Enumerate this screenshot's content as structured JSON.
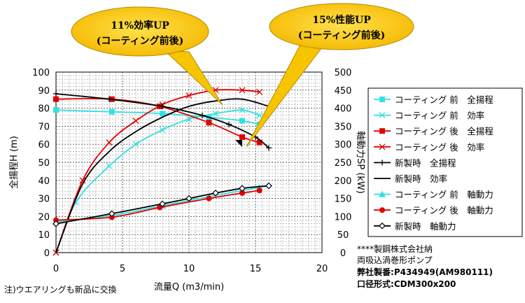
{
  "chart_data": {
    "type": "line",
    "title": "",
    "xlabel": "流量Q (m3/min)",
    "ylabel_left": "全揚程H (m)",
    "ylabel_right": "軸動力SP (kW)",
    "xlim": [
      0,
      20
    ],
    "ylim_left": [
      0,
      100
    ],
    "ylim_right": [
      0,
      500
    ],
    "x_ticks": [
      "0",
      "5",
      "10",
      "15",
      "20"
    ],
    "y_left_ticks": [
      "0",
      "10",
      "20",
      "30",
      "40",
      "50",
      "60",
      "70",
      "80",
      "90",
      "100"
    ],
    "y_right_ticks": [
      "0",
      "50",
      "100",
      "150",
      "200",
      "250",
      "300",
      "350",
      "400",
      "450",
      "500"
    ],
    "grid": true,
    "legend_position": "right",
    "series": [
      {
        "name": "コーティング 前　全揚程",
        "axis": "left",
        "color": "#33e0e0",
        "marker": "square",
        "x": [
          0,
          4.2,
          8,
          11.5,
          14,
          15.3
        ],
        "y": [
          79,
          78,
          77,
          75,
          73,
          71
        ]
      },
      {
        "name": "コーティング 前　効率",
        "axis": "left",
        "color": "#33e0e0",
        "marker": "x",
        "x": [
          0,
          1.5,
          4,
          6,
          8,
          10,
          12,
          14,
          15.3
        ],
        "y": [
          0,
          28,
          48,
          60,
          68,
          74,
          77,
          79,
          76
        ]
      },
      {
        "name": "コーティング 後　全揚程",
        "axis": "left",
        "color": "#e00000",
        "marker": "square",
        "x": [
          0,
          4.2,
          7.8,
          11.5,
          14,
          15.3
        ],
        "y": [
          85,
          85,
          81,
          72,
          64,
          61
        ]
      },
      {
        "name": "コーティング 後　効率",
        "axis": "left",
        "color": "#e00000",
        "marker": "x",
        "x": [
          0,
          2,
          4,
          6,
          8,
          10,
          12,
          14,
          15.3
        ],
        "y": [
          0,
          40,
          61,
          73,
          82,
          87,
          90,
          90,
          89
        ]
      },
      {
        "name": "新製時　全揚程",
        "axis": "left",
        "color": "#000000",
        "marker": "plus",
        "x": [
          0,
          4,
          8,
          11,
          13,
          15,
          16
        ],
        "y": [
          88,
          85,
          81,
          76,
          71,
          64,
          58
        ]
      },
      {
        "name": "新製時　効率",
        "axis": "left",
        "color": "#000000",
        "marker": "none",
        "x": [
          0,
          2,
          4,
          6,
          8,
          10,
          12,
          14,
          16
        ],
        "y": [
          0,
          38,
          56,
          67,
          75,
          81,
          84,
          85,
          81
        ]
      },
      {
        "name": "コーティング 前　軸動力",
        "axis": "right",
        "color": "#33e0e0",
        "marker": "triangle",
        "x": [
          0,
          4.2,
          8,
          11.5,
          14,
          15.3
        ],
        "y": [
          85,
          103,
          130,
          155,
          172,
          180
        ]
      },
      {
        "name": "コーティング 後　軸動力",
        "axis": "right",
        "color": "#e00000",
        "marker": "circle",
        "x": [
          0,
          4.2,
          7.8,
          11.5,
          14,
          15.3
        ],
        "y": [
          90,
          98,
          125,
          150,
          165,
          172
        ]
      },
      {
        "name": "新製時　軸動力",
        "axis": "right",
        "color": "#000000",
        "marker": "diamond",
        "x": [
          0,
          4.2,
          8,
          10,
          12,
          14,
          16
        ],
        "y": [
          80,
          108,
          135,
          150,
          165,
          178,
          185
        ]
      }
    ]
  },
  "callouts": [
    {
      "line1": "11%効率UP",
      "line2": "(コーティング前後)"
    },
    {
      "line1": "15%性能UP",
      "line2": "(コーティング前後)"
    }
  ],
  "info": {
    "line1": "****製鋼株式会社納",
    "line2": "両吸込渦巻形ポンプ",
    "line3_label": "弊社製番:",
    "line3_value": "P434949(AM980111)",
    "line4_label": "口径形式:",
    "line4_value": "CDM300x200"
  },
  "note": "注)ウエアリングも新品に交換"
}
